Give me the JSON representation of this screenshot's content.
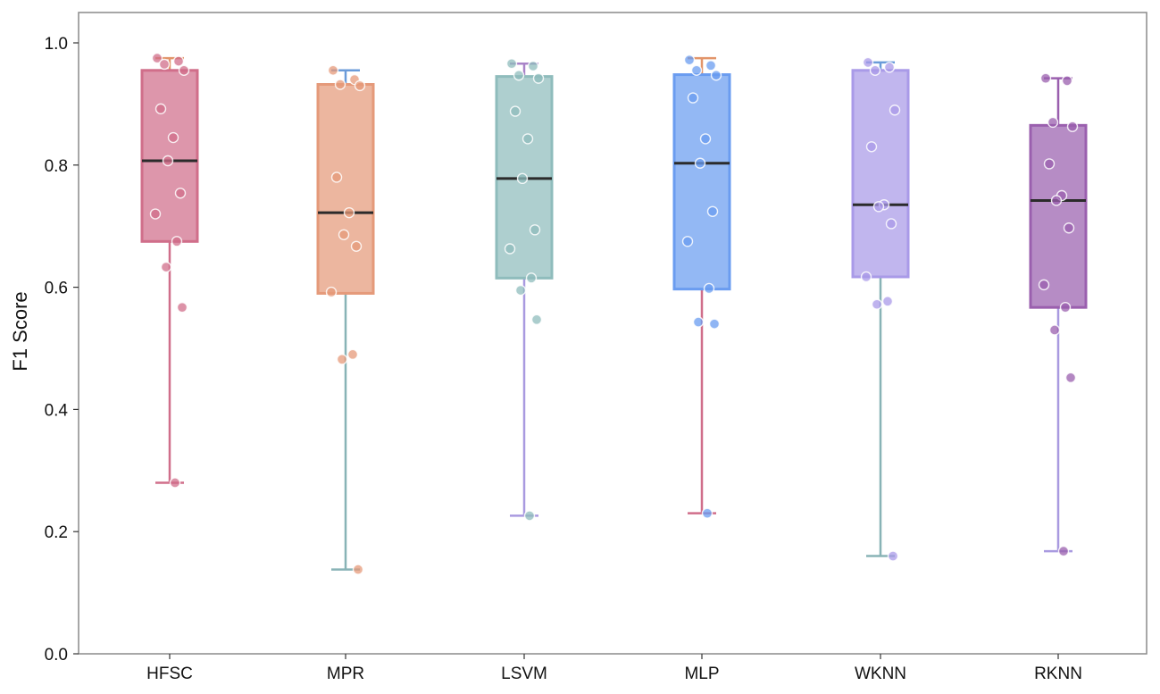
{
  "chart_data": {
    "type": "box",
    "title": "",
    "xlabel": "",
    "ylabel": "F1 Score",
    "ylim": [
      0.0,
      1.05
    ],
    "yticks": [
      "0.0",
      "0.2",
      "0.4",
      "0.6",
      "0.8",
      "1.0"
    ],
    "grid": false,
    "overlay": "jittered points",
    "categories": [
      {
        "name": "HFSC",
        "color": "#d06e8a",
        "cap_color": "#e2956a",
        "whisker_color": "#d06e8a",
        "q1": 0.675,
        "median": 0.807,
        "q3": 0.955,
        "whisker_low": 0.28,
        "whisker_high": 0.975,
        "points": [
          0.975,
          0.97,
          0.965,
          0.955,
          0.892,
          0.845,
          0.807,
          0.754,
          0.72,
          0.675,
          0.633,
          0.567,
          0.28
        ]
      },
      {
        "name": "MPR",
        "color": "#e59a7a",
        "cap_color": "#6a9bd9",
        "whisker_color": "#88b3b6",
        "q1": 0.59,
        "median": 0.722,
        "q3": 0.932,
        "whisker_low": 0.138,
        "whisker_high": 0.955,
        "points": [
          0.955,
          0.94,
          0.932,
          0.93,
          0.78,
          0.722,
          0.686,
          0.667,
          0.592,
          0.49,
          0.482,
          0.138
        ]
      },
      {
        "name": "LSVM",
        "color": "#8fbcbc",
        "cap_color": "#a984c8",
        "whisker_color": "#a99ae0",
        "q1": 0.615,
        "median": 0.778,
        "q3": 0.945,
        "whisker_low": 0.226,
        "whisker_high": 0.966,
        "points": [
          0.966,
          0.962,
          0.947,
          0.942,
          0.888,
          0.843,
          0.778,
          0.694,
          0.663,
          0.615,
          0.595,
          0.547,
          0.226
        ]
      },
      {
        "name": "MLP",
        "color": "#6a9cf0",
        "cap_color": "#e2956a",
        "whisker_color": "#d06e8a",
        "q1": 0.597,
        "median": 0.803,
        "q3": 0.948,
        "whisker_low": 0.23,
        "whisker_high": 0.975,
        "points": [
          0.972,
          0.963,
          0.955,
          0.947,
          0.91,
          0.843,
          0.803,
          0.724,
          0.675,
          0.598,
          0.543,
          0.54,
          0.23
        ]
      },
      {
        "name": "WKNN",
        "color": "#a99ae8",
        "cap_color": "#6a9bd9",
        "whisker_color": "#88b3b6",
        "q1": 0.617,
        "median": 0.735,
        "q3": 0.955,
        "whisker_low": 0.16,
        "whisker_high": 0.968,
        "points": [
          0.968,
          0.96,
          0.955,
          0.89,
          0.83,
          0.735,
          0.732,
          0.704,
          0.617,
          0.577,
          0.572,
          0.16
        ]
      },
      {
        "name": "RKNN",
        "color": "#9a5fae",
        "cap_color": "#9a5fae",
        "whisker_color": "#a99ae0",
        "q1": 0.567,
        "median": 0.742,
        "q3": 0.865,
        "whisker_low": 0.168,
        "whisker_high": 0.942,
        "points": [
          0.942,
          0.938,
          0.87,
          0.863,
          0.802,
          0.75,
          0.742,
          0.697,
          0.604,
          0.567,
          0.53,
          0.452,
          0.168
        ]
      }
    ]
  }
}
